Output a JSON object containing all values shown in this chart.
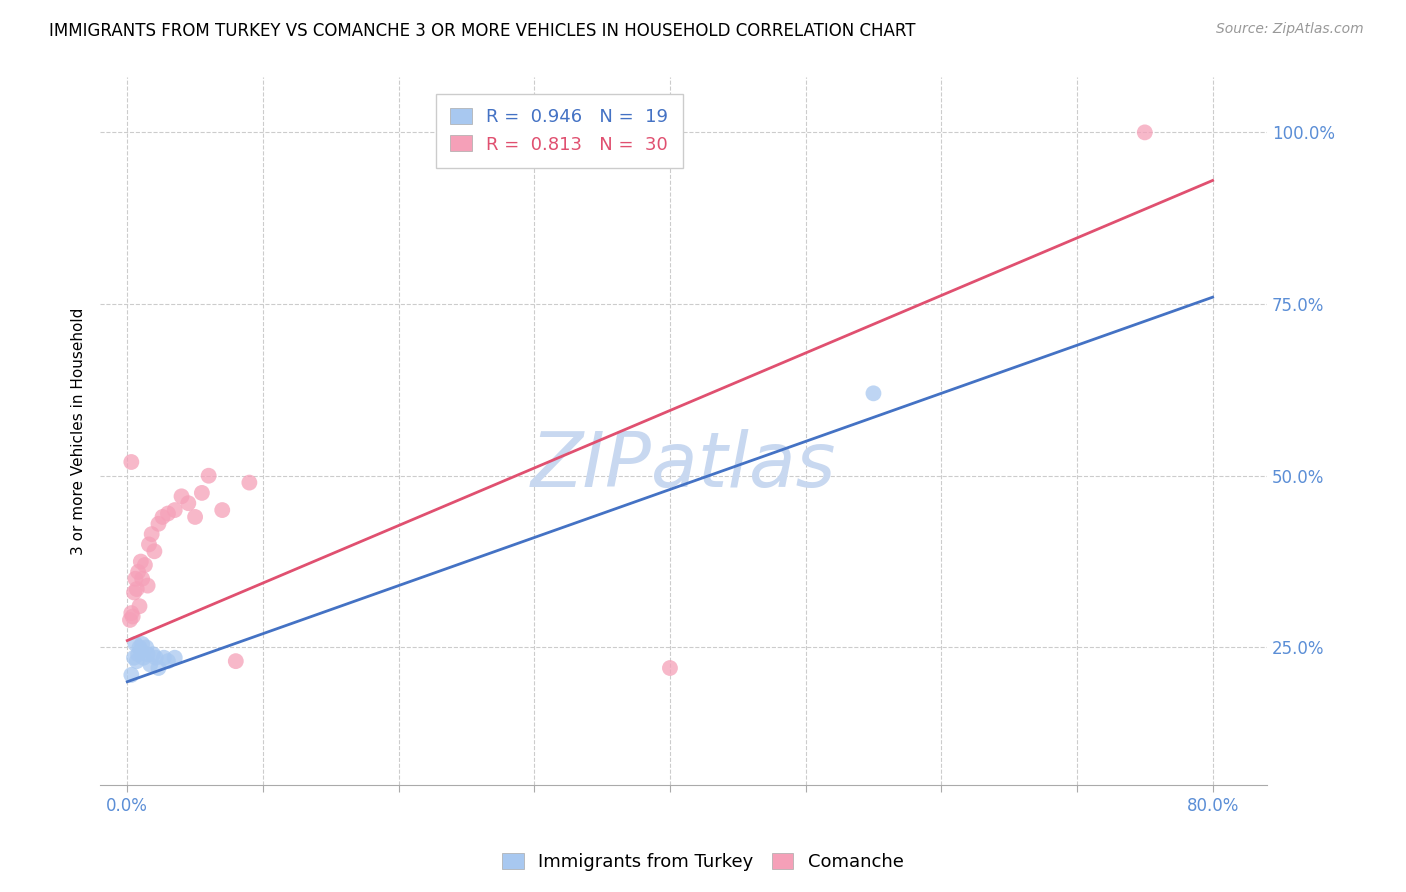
{
  "title": "IMMIGRANTS FROM TURKEY VS COMANCHE 3 OR MORE VEHICLES IN HOUSEHOLD CORRELATION CHART",
  "source": "Source: ZipAtlas.com",
  "ylabel": "3 or more Vehicles in Household",
  "xlabel_ticks": [
    0.0,
    10.0,
    20.0,
    30.0,
    40.0,
    50.0,
    60.0,
    70.0,
    80.0
  ],
  "xlabel_labels": [
    "0.0%",
    "",
    "",
    "",
    "",
    "",
    "",
    "",
    "80.0%"
  ],
  "ylabel_ticks": [
    25.0,
    50.0,
    75.0,
    100.0
  ],
  "xlim": [
    -2,
    84
  ],
  "ylim": [
    5,
    108
  ],
  "blue_scatter_x": [
    0.3,
    0.5,
    0.6,
    0.7,
    0.8,
    0.9,
    1.0,
    1.1,
    1.2,
    1.4,
    1.5,
    1.7,
    1.9,
    2.1,
    2.3,
    2.7,
    3.0,
    3.5,
    55.0
  ],
  "blue_scatter_y": [
    21.0,
    23.5,
    25.5,
    23.0,
    24.0,
    25.0,
    24.5,
    25.5,
    23.5,
    25.0,
    24.0,
    22.5,
    24.0,
    23.5,
    22.0,
    23.5,
    23.0,
    23.5,
    62.0
  ],
  "pink_scatter_x": [
    0.2,
    0.3,
    0.4,
    0.5,
    0.6,
    0.7,
    0.8,
    0.9,
    1.0,
    1.1,
    1.3,
    1.5,
    1.6,
    1.8,
    2.0,
    2.3,
    2.6,
    3.0,
    3.5,
    4.0,
    4.5,
    5.0,
    5.5,
    6.0,
    7.0,
    8.0,
    9.0,
    0.3,
    40.0,
    75.0
  ],
  "pink_scatter_y": [
    29.0,
    30.0,
    29.5,
    33.0,
    35.0,
    33.5,
    36.0,
    31.0,
    37.5,
    35.0,
    37.0,
    34.0,
    40.0,
    41.5,
    39.0,
    43.0,
    44.0,
    44.5,
    45.0,
    47.0,
    46.0,
    44.0,
    47.5,
    50.0,
    45.0,
    23.0,
    49.0,
    52.0,
    22.0,
    100.0
  ],
  "blue_line_x": [
    0.0,
    80.0
  ],
  "blue_line_y": [
    20.0,
    76.0
  ],
  "pink_line_x": [
    0.0,
    80.0
  ],
  "pink_line_y": [
    26.0,
    93.0
  ],
  "blue_color": "#a8c8f0",
  "pink_color": "#f5a0b8",
  "blue_line_color": "#4472c4",
  "pink_line_color": "#e05070",
  "legend_blue_R": "0.946",
  "legend_blue_N": "19",
  "legend_pink_R": "0.813",
  "legend_pink_N": "30",
  "watermark": "ZIPatlas",
  "watermark_color": "#c8d8f0",
  "title_fontsize": 12,
  "source_fontsize": 10,
  "label_fontsize": 11,
  "tick_fontsize": 12,
  "legend_fontsize": 13,
  "right_tick_color": "#5b8ed6",
  "bottom_tick_color": "#5b8ed6"
}
